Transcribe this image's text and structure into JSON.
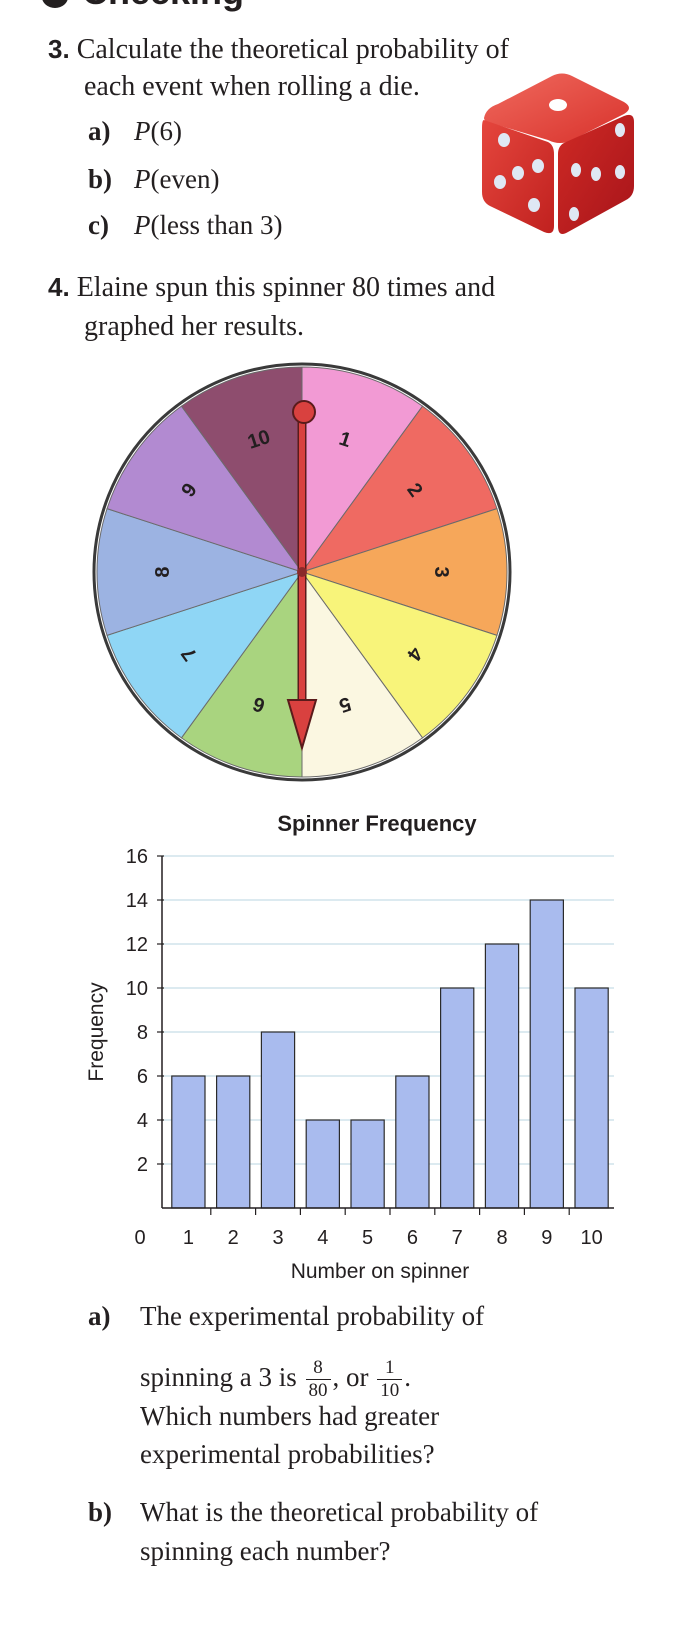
{
  "header": {
    "partial_title": "Checking"
  },
  "q3": {
    "number": "3.",
    "text_line1": "Calculate the theoretical probability of",
    "text_line2": "each event when rolling a die.",
    "parts": [
      {
        "label": "a)",
        "fn": "P",
        "arg": "(6)"
      },
      {
        "label": "b)",
        "fn": "P",
        "arg": "(even)"
      },
      {
        "label": "c)",
        "fn": "P",
        "arg": "(less than 3)"
      }
    ]
  },
  "q4": {
    "number": "4.",
    "text_line1": "Elaine spun this spinner 80 times and",
    "text_line2": "graphed her results.",
    "spinner": {
      "sections": [
        {
          "label": "1",
          "color": "#f29ad4"
        },
        {
          "label": "2",
          "color": "#ef6a62"
        },
        {
          "label": "3",
          "color": "#f6a75a"
        },
        {
          "label": "4",
          "color": "#f8f47a"
        },
        {
          "label": "5",
          "color": "#fbf7e1"
        },
        {
          "label": "6",
          "color": "#a9d47f"
        },
        {
          "label": "7",
          "color": "#8fd6f5"
        },
        {
          "label": "8",
          "color": "#9cb3e2"
        },
        {
          "label": "9",
          "color": "#b28ad1"
        },
        {
          "label": "10",
          "color": "#8e4d6e"
        }
      ],
      "pointer_color": "#d9413f"
    },
    "part_a": {
      "label": "a)",
      "line1_pre": "The experimental probability of",
      "line2_pre": "spinning a 3 is",
      "frac1_num": "8",
      "frac1_den": "80",
      "or": ", or",
      "frac2_num": "1",
      "frac2_den": "10",
      "period": ".",
      "line3": "Which numbers had greater",
      "line4": "experimental probabilities?"
    },
    "part_b": {
      "label": "b)",
      "line1": "What is the theoretical probability of",
      "line2": "spinning each number?"
    }
  },
  "chart_data": {
    "type": "bar",
    "title": "Spinner Frequency",
    "xlabel": "Number on spinner",
    "ylabel": "Frequency",
    "categories": [
      "1",
      "2",
      "3",
      "4",
      "5",
      "6",
      "7",
      "8",
      "9",
      "10"
    ],
    "values": [
      6,
      6,
      8,
      4,
      4,
      6,
      10,
      12,
      14,
      10
    ],
    "ylim": [
      0,
      16
    ],
    "yticks": [
      2,
      4,
      6,
      8,
      10,
      12,
      14,
      16
    ],
    "x_origin_label": "0",
    "grid": true,
    "bar_color": "#a9bbee",
    "bar_edge_color": "#2b2b2b",
    "grid_color": "#c7dde8"
  }
}
